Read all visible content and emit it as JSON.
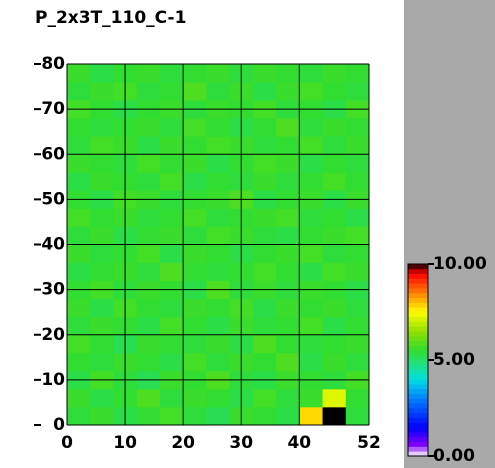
{
  "chart_data": {
    "type": "heatmap",
    "title": "P_2x3T_110_C-1",
    "xlim": [
      0,
      52
    ],
    "ylim": [
      0,
      80
    ],
    "xticks": [
      0,
      10,
      20,
      30,
      40,
      52
    ],
    "yticks": [
      0,
      10,
      20,
      30,
      40,
      50,
      60,
      70,
      80
    ],
    "grid": true,
    "colorbar_ticks": [
      {
        "value": 0,
        "label": "0.00"
      },
      {
        "value": 5,
        "label": "5.00"
      },
      {
        "value": 10,
        "label": "10.00"
      }
    ],
    "colorscale": [
      [
        0,
        "#ffffff"
      ],
      [
        0.6,
        "#8000ff"
      ],
      [
        1.5,
        "#0000ff"
      ],
      [
        3,
        "#0080ff"
      ],
      [
        4,
        "#00e0e0"
      ],
      [
        4.8,
        "#20e080"
      ],
      [
        5.5,
        "#30dd30"
      ],
      [
        6.5,
        "#90e000"
      ],
      [
        7.5,
        "#ffff00"
      ],
      [
        8.5,
        "#ff8000"
      ],
      [
        9.5,
        "#ff0000"
      ],
      [
        9.8,
        "#800000"
      ],
      [
        10,
        "#000000"
      ]
    ],
    "z": [
      [
        5.4,
        5.6,
        5.3,
        5.5,
        5.7,
        5.4,
        5.2,
        5.6,
        5.5,
        5.3,
        7.8,
        10,
        5.4
      ],
      [
        5.6,
        5.3,
        5.5,
        5.8,
        5.4,
        5.6,
        5.5,
        5.3,
        5.7,
        5.4,
        5.6,
        7.2,
        5.5
      ],
      [
        5.3,
        5.7,
        5.4,
        5.2,
        5.6,
        5.5,
        5.8,
        5.4,
        5.3,
        5.6,
        5.5,
        5.4,
        5.7
      ],
      [
        5.5,
        5.4,
        5.6,
        5.5,
        5.3,
        5.7,
        5.4,
        5.6,
        5.5,
        5.8,
        5.3,
        5.6,
        5.4
      ],
      [
        5.7,
        5.5,
        5.2,
        5.6,
        5.5,
        5.4,
        5.6,
        5.3,
        5.8,
        5.5,
        5.4,
        5.5,
        5.6
      ],
      [
        5.4,
        5.6,
        5.5,
        5.3,
        5.7,
        5.5,
        5.3,
        5.6,
        5.4,
        5.5,
        5.7,
        5.3,
        5.5
      ],
      [
        5.6,
        5.3,
        5.7,
        5.5,
        5.4,
        5.6,
        5.5,
        5.7,
        5.3,
        5.6,
        5.5,
        5.6,
        5.4
      ],
      [
        5.5,
        5.7,
        5.4,
        5.6,
        5.5,
        5.3,
        5.8,
        5.4,
        5.6,
        5.4,
        5.6,
        5.5,
        5.3
      ],
      [
        5.3,
        5.5,
        5.6,
        5.4,
        5.8,
        5.5,
        5.4,
        5.5,
        5.7,
        5.5,
        5.3,
        5.7,
        5.6
      ],
      [
        5.6,
        5.4,
        5.5,
        5.7,
        5.3,
        5.6,
        5.5,
        5.3,
        5.5,
        5.6,
        5.7,
        5.4,
        5.5
      ],
      [
        5.4,
        5.6,
        5.3,
        5.5,
        5.6,
        5.4,
        5.7,
        5.6,
        5.4,
        5.3,
        5.5,
        5.6,
        5.7
      ],
      [
        5.7,
        5.5,
        5.6,
        5.4,
        5.5,
        5.7,
        5.4,
        5.5,
        5.6,
        5.7,
        5.4,
        5.5,
        5.3
      ],
      [
        5.5,
        5.3,
        5.7,
        5.6,
        5.4,
        5.5,
        5.6,
        5.8,
        5.3,
        5.5,
        5.6,
        5.3,
        5.6
      ],
      [
        5.3,
        5.6,
        5.5,
        5.4,
        5.7,
        5.3,
        5.5,
        5.4,
        5.6,
        5.4,
        5.5,
        5.7,
        5.5
      ],
      [
        5.6,
        5.5,
        5.4,
        5.7,
        5.5,
        5.6,
        5.3,
        5.5,
        5.7,
        5.6,
        5.3,
        5.5,
        5.4
      ],
      [
        5.4,
        5.7,
        5.6,
        5.3,
        5.6,
        5.5,
        5.7,
        5.6,
        5.4,
        5.5,
        5.7,
        5.4,
        5.6
      ],
      [
        5.5,
        5.4,
        5.5,
        5.6,
        5.4,
        5.7,
        5.5,
        5.3,
        5.5,
        5.8,
        5.4,
        5.6,
        5.5
      ],
      [
        5.7,
        5.5,
        5.3,
        5.5,
        5.6,
        5.4,
        5.6,
        5.5,
        5.7,
        5.4,
        5.5,
        5.3,
        5.7
      ],
      [
        5.4,
        5.6,
        5.7,
        5.4,
        5.5,
        5.8,
        5.4,
        5.6,
        5.3,
        5.6,
        5.7,
        5.5,
        5.4
      ],
      [
        5.6,
        5.3,
        5.5,
        5.6,
        5.4,
        5.5,
        5.6,
        5.4,
        5.6,
        5.5,
        5.4,
        5.6,
        5.5
      ]
    ]
  }
}
